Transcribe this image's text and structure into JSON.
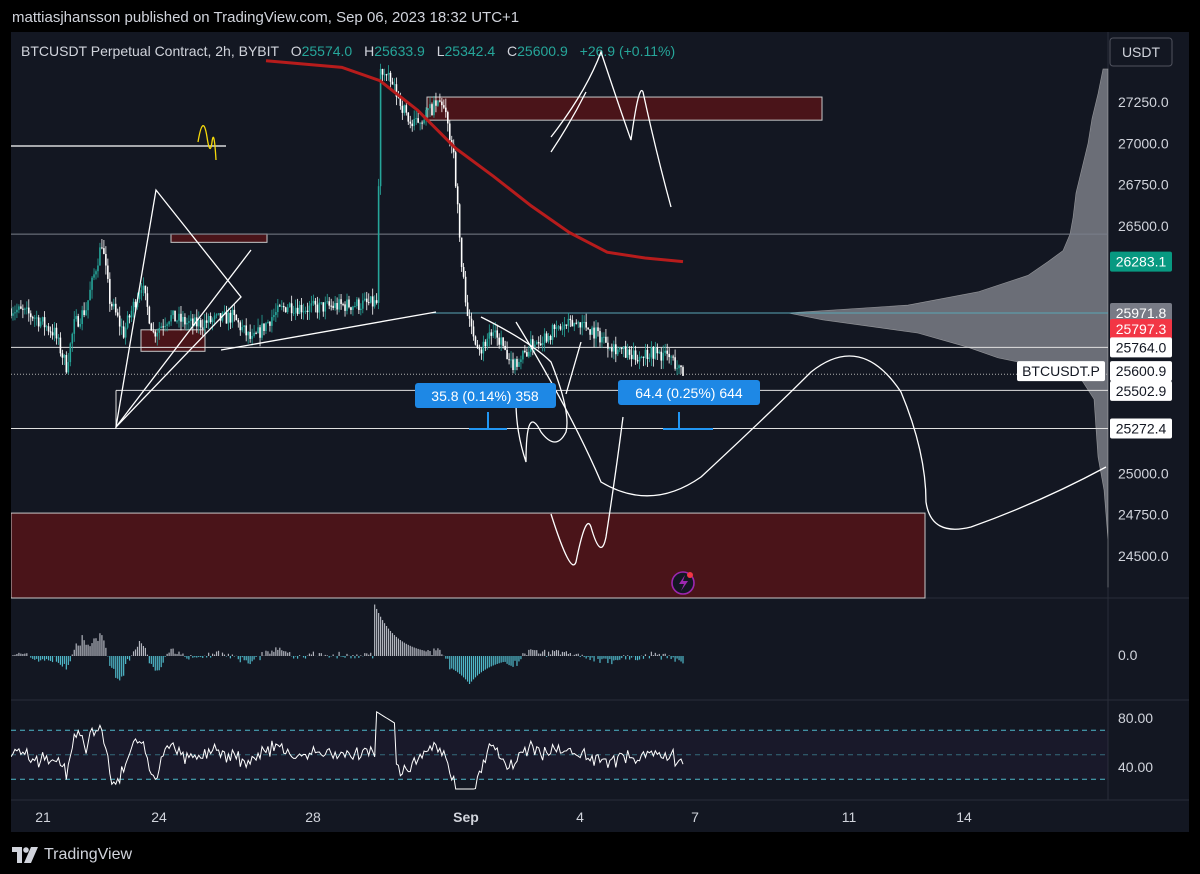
{
  "header": {
    "published_by": "mattiasjhansson published on TradingView.com, Sep 06, 2023 18:32 UTC+1"
  },
  "symbol_line": {
    "symbol": "BTCUSDT Perpetual Contract, 2h, BYBIT",
    "o_label": "O",
    "o_value": "25574.0",
    "h_label": "H",
    "h_value": "25633.9",
    "l_label": "L",
    "l_value": "25342.4",
    "c_label": "C",
    "c_value": "25600.9",
    "change": "+26.9 (+0.11%)"
  },
  "currency_button": "USDT",
  "symbol_tag": "BTCUSDT.P",
  "colors": {
    "background": "#131722",
    "bull": "#26a69a",
    "bear": "#ffffff",
    "ma": "#b71c1c",
    "zone_fill": "#4a1419",
    "label_blue": "#1e88e5",
    "price_green": "#089981",
    "price_red": "#f23645",
    "price_gray": "#787b86"
  },
  "measure_labels": [
    {
      "text": "35.8 (0.14%) 358"
    },
    {
      "text": "64.4 (0.25%) 644"
    }
  ],
  "footer": {
    "brand": "TradingView",
    "logo_icon": "tradingview-logo-icon"
  },
  "chart_data": {
    "type": "candlestick",
    "title": "BTCUSDT Perpetual Contract, 2h, BYBIT",
    "price_axis": {
      "range": [
        24310,
        27500
      ],
      "ticks": [
        "27250.0",
        "27000.0",
        "26750.0",
        "26500.0",
        "25000.0",
        "24750.0",
        "24500.0"
      ]
    },
    "x_axis": {
      "ticks": [
        {
          "label": "21",
          "bold": false
        },
        {
          "label": "24",
          "bold": false
        },
        {
          "label": "28",
          "bold": false
        },
        {
          "label": "Sep",
          "bold": true
        },
        {
          "label": "4",
          "bold": false
        },
        {
          "label": "7",
          "bold": false
        },
        {
          "label": "11",
          "bold": false
        },
        {
          "label": "14",
          "bold": false
        }
      ]
    },
    "price_labels": [
      {
        "value": "26283.1",
        "style": "green"
      },
      {
        "value": "25971.8",
        "style": "gray"
      },
      {
        "value": "25797.3",
        "style": "red"
      },
      {
        "value": "25764.0",
        "style": "white"
      },
      {
        "value": "25600.9",
        "style": "white"
      },
      {
        "value": "25502.9",
        "style": "white"
      },
      {
        "value": "25272.4",
        "style": "white"
      }
    ],
    "key_prices": {
      "ma_end": 26283.1,
      "volume_poc": 25971.8,
      "last": 25600.9,
      "horizontal_levels": [
        26450,
        25764.0,
        25502.9,
        25272.4
      ]
    },
    "price_anchors": [
      [
        0,
        26000
      ],
      [
        12,
        25950
      ],
      [
        22,
        25850
      ],
      [
        28,
        25650
      ],
      [
        32,
        25900
      ],
      [
        38,
        26000
      ],
      [
        46,
        26400
      ],
      [
        50,
        26050
      ],
      [
        57,
        25850
      ],
      [
        66,
        26150
      ],
      [
        72,
        25850
      ],
      [
        80,
        25950
      ],
      [
        92,
        25900
      ],
      [
        112,
        25950
      ],
      [
        122,
        25800
      ],
      [
        132,
        25950
      ],
      [
        140,
        26020
      ],
      [
        150,
        26000
      ],
      [
        170,
        26020
      ],
      [
        185,
        26030
      ],
      [
        187,
        27450
      ],
      [
        193,
        27350
      ],
      [
        203,
        27100
      ],
      [
        212,
        27200
      ],
      [
        218,
        27250
      ],
      [
        224,
        26950
      ],
      [
        228,
        26250
      ],
      [
        232,
        25900
      ],
      [
        238,
        25750
      ],
      [
        242,
        25850
      ],
      [
        248,
        25800
      ],
      [
        252,
        25650
      ],
      [
        258,
        25700
      ],
      [
        265,
        25800
      ],
      [
        276,
        25870
      ],
      [
        288,
        25920
      ],
      [
        296,
        25850
      ],
      [
        304,
        25780
      ],
      [
        314,
        25700
      ],
      [
        324,
        25740
      ],
      [
        334,
        25700
      ],
      [
        340,
        25600
      ]
    ],
    "volume_profile": [
      [
        24310,
        0
      ],
      [
        24600,
        0
      ],
      [
        24900,
        4
      ],
      [
        25100,
        10
      ],
      [
        25272,
        12
      ],
      [
        25450,
        14
      ],
      [
        25600,
        30
      ],
      [
        25700,
        110
      ],
      [
        25764,
        140
      ],
      [
        25850,
        190
      ],
      [
        25930,
        285
      ],
      [
        25972,
        320
      ],
      [
        26020,
        200
      ],
      [
        26100,
        130
      ],
      [
        26200,
        80
      ],
      [
        26283,
        60
      ],
      [
        26350,
        45
      ],
      [
        26450,
        38
      ],
      [
        26550,
        35
      ],
      [
        26700,
        32
      ],
      [
        26850,
        26
      ],
      [
        27000,
        20
      ],
      [
        27150,
        16
      ],
      [
        27300,
        10
      ],
      [
        27450,
        5
      ]
    ],
    "macd": {
      "zero_label": "0.0"
    },
    "rsi": {
      "ticks": [
        "80.00",
        "40.00"
      ],
      "upper_band": 70,
      "lower_band": 30
    }
  }
}
